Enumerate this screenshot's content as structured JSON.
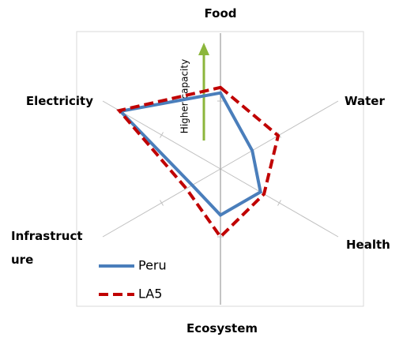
{
  "chart_data": {
    "type": "radar",
    "categories": [
      "Food",
      "Water",
      "Health",
      "Ecosystem",
      "Infrastructure",
      "Electricity"
    ],
    "rlim": [
      0,
      1
    ],
    "rticks": [
      0.5
    ],
    "annotation": "Higher capacity",
    "series": [
      {
        "name": "Peru",
        "color": "#4a7ebb",
        "style": "solid",
        "values": [
          0.56,
          0.27,
          0.34,
          0.34,
          0.24,
          0.85
        ]
      },
      {
        "name": "LA5",
        "color": "#c00000",
        "style": "dashed",
        "values": [
          0.6,
          0.49,
          0.37,
          0.5,
          0.29,
          0.86
        ]
      }
    ]
  }
}
